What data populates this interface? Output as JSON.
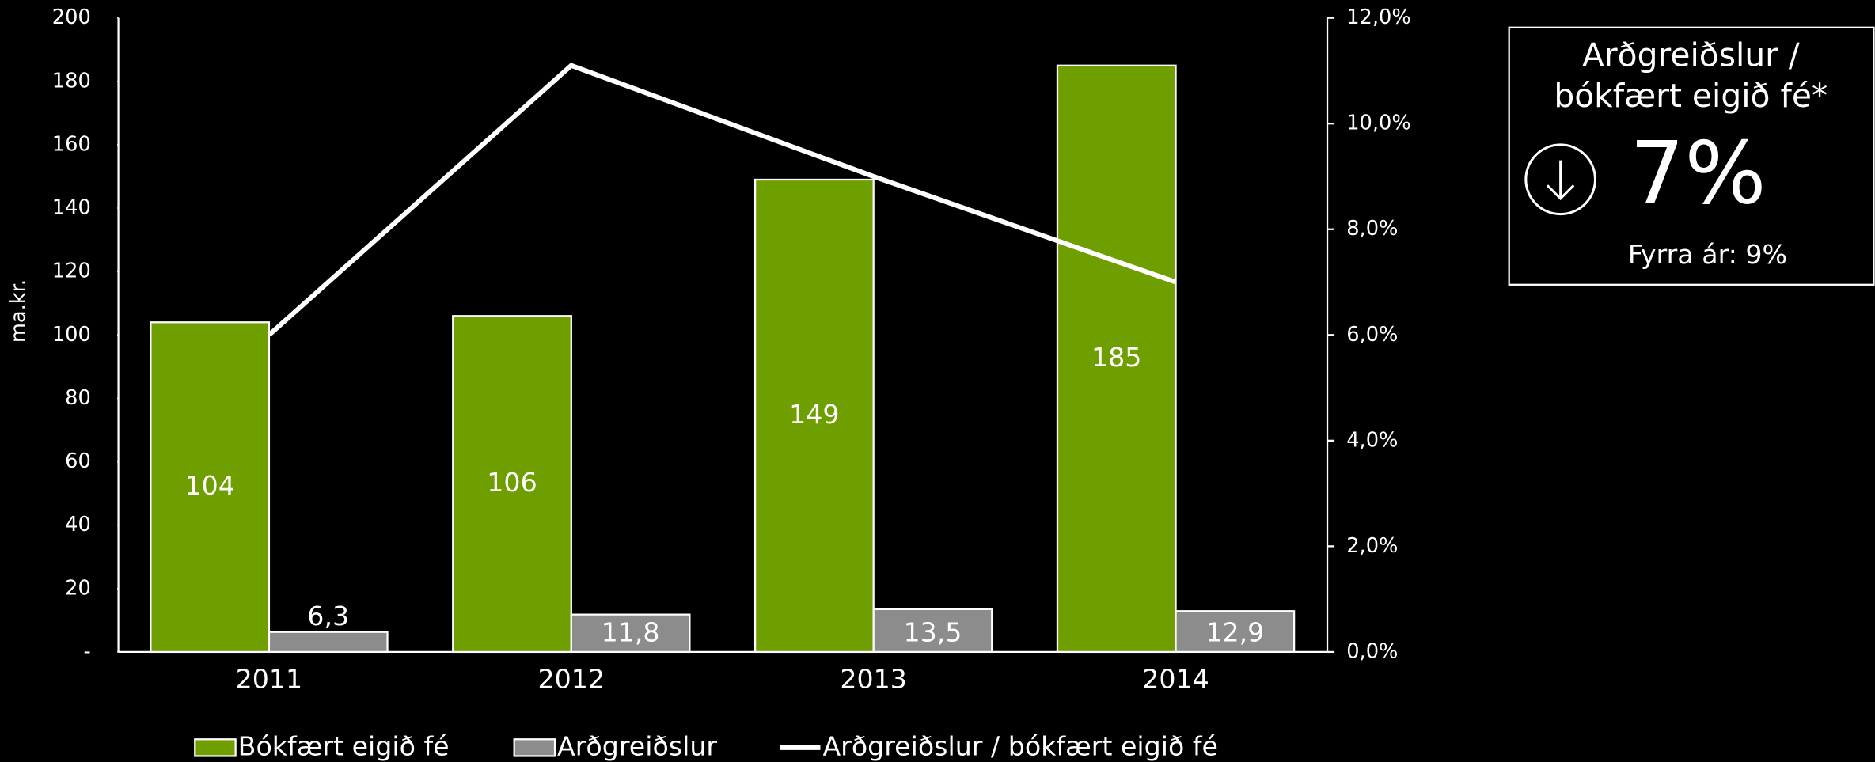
{
  "chart_data": {
    "type": "bar",
    "categories": [
      "2011",
      "2012",
      "2013",
      "2014"
    ],
    "y_label": "ma.kr.",
    "series": [
      {
        "name": "Bókfært eigið fé",
        "color": "#6e9e00",
        "values": [
          104,
          106,
          149,
          185
        ]
      },
      {
        "name": "Arðgreiðslur",
        "color": "#8c8c8c",
        "values": [
          6.3,
          11.8,
          13.5,
          12.9
        ],
        "value_labels": [
          "6,3",
          "11,8",
          "13,5",
          "12,9"
        ]
      },
      {
        "name": "Arðgreiðslur / bókfært eigið fé",
        "type": "line",
        "axis": "y2",
        "color": "#ffffff",
        "values": [
          6.0,
          11.1,
          9.0,
          7.0
        ]
      }
    ],
    "ylim": [
      0,
      200
    ],
    "yticks": [
      {
        "value": 0,
        "label": "-"
      },
      20,
      40,
      60,
      80,
      100,
      120,
      140,
      160,
      180,
      200
    ],
    "y2lim": [
      0,
      12
    ],
    "y2ticks": [
      {
        "value": 0,
        "label": "0,0%"
      },
      {
        "value": 2,
        "label": "2,0%"
      },
      {
        "value": 4,
        "label": "4,0%"
      },
      {
        "value": 6,
        "label": "6,0%"
      },
      {
        "value": 8,
        "label": "8,0%"
      },
      {
        "value": 10,
        "label": "10,0%"
      },
      {
        "value": 12,
        "label": "12,0%"
      }
    ]
  },
  "kpi_box": {
    "title": [
      "Arðgreiðslur /",
      "bókfært eigið fé*"
    ],
    "value": "7%",
    "previous": "Fyrra ár: 9%"
  }
}
